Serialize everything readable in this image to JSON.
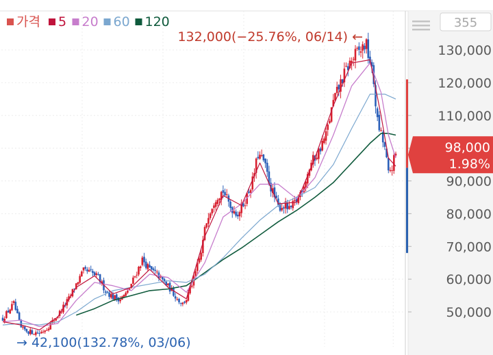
{
  "chart_data": {
    "type": "candlestick",
    "title": "",
    "xlabel": "",
    "ylabel": "",
    "ylim": [
      42000,
      137000
    ],
    "y_ticks": [
      50000,
      60000,
      70000,
      80000,
      90000,
      100000,
      110000,
      120000,
      130000
    ],
    "y_tick_labels": [
      "50,000",
      "60,000",
      "70,000",
      "80,000",
      "90,000",
      "100,000",
      "110,000",
      "120,000",
      "130,000"
    ],
    "grid": true,
    "legend_position": "top-left",
    "legend": [
      {
        "label": "가격",
        "color": "#d9534f"
      },
      {
        "label": "5",
        "color": "#c0143c"
      },
      {
        "label": "20",
        "color": "#c77dcc"
      },
      {
        "label": "60",
        "color": "#7ba7cf"
      },
      {
        "label": "120",
        "color": "#0f5a3c"
      }
    ],
    "max_annotation": {
      "text": "132,000(−25.76%, 06/14) ←",
      "value": 132000,
      "color": "#c0392b"
    },
    "min_annotation": {
      "text": "→ 42,100(132.78%, 03/06)",
      "value": 42100,
      "color": "#2a62b0"
    },
    "current_price": {
      "price": "98,000",
      "change": "1.98%",
      "value": 98000,
      "color": "#e0413f"
    },
    "top_right_box": "355",
    "side_bar": {
      "up_top": 121000,
      "split": 94000,
      "down_bottom": 68000,
      "up_color": "#e0413f",
      "down_color": "#2a62b0"
    },
    "price_path": [
      [
        0,
        48000
      ],
      [
        3,
        52500
      ],
      [
        5,
        45000
      ],
      [
        7,
        44000
      ],
      [
        10,
        43500
      ],
      [
        12,
        45000
      ],
      [
        15,
        49000
      ],
      [
        18,
        54000
      ],
      [
        20,
        58500
      ],
      [
        22,
        62500
      ],
      [
        24,
        62000
      ],
      [
        26,
        60500
      ],
      [
        28,
        56500
      ],
      [
        30,
        54500
      ],
      [
        32,
        54000
      ],
      [
        34,
        56000
      ],
      [
        36,
        61000
      ],
      [
        38,
        66000
      ],
      [
        40,
        63000
      ],
      [
        42,
        61500
      ],
      [
        44,
        59000
      ],
      [
        46,
        56500
      ],
      [
        47.5,
        54000
      ],
      [
        49,
        52500
      ],
      [
        50,
        54000
      ],
      [
        52,
        60000
      ],
      [
        54,
        68000
      ],
      [
        55,
        75000
      ],
      [
        56,
        80000
      ],
      [
        58,
        85000
      ],
      [
        60,
        87000
      ],
      [
        62,
        82000
      ],
      [
        64,
        80000
      ],
      [
        66,
        84000
      ],
      [
        68,
        90000
      ],
      [
        69.5,
        98000
      ],
      [
        71,
        96000
      ],
      [
        73,
        88000
      ],
      [
        75,
        82000
      ],
      [
        77,
        82500
      ],
      [
        78,
        81000
      ],
      [
        80,
        84000
      ],
      [
        82,
        89000
      ],
      [
        84,
        95500
      ],
      [
        86,
        99000
      ],
      [
        88,
        104000
      ],
      [
        90,
        114000
      ],
      [
        92,
        120000
      ],
      [
        94,
        125000
      ],
      [
        96,
        128500
      ],
      [
        97.5,
        130000
      ],
      [
        98.8,
        132000
      ],
      [
        100,
        126500
      ],
      [
        101,
        120000
      ],
      [
        102,
        108000
      ],
      [
        103,
        104000
      ],
      [
        104,
        100000
      ],
      [
        105,
        92000
      ],
      [
        106,
        94500
      ],
      [
        107,
        98000
      ]
    ],
    "ma5": [
      [
        0,
        47000
      ],
      [
        5,
        46000
      ],
      [
        10,
        44500
      ],
      [
        15,
        48500
      ],
      [
        20,
        57500
      ],
      [
        25,
        61000
      ],
      [
        30,
        55500
      ],
      [
        35,
        57500
      ],
      [
        40,
        63000
      ],
      [
        45,
        57500
      ],
      [
        50,
        54000
      ],
      [
        55,
        73000
      ],
      [
        60,
        85500
      ],
      [
        65,
        82500
      ],
      [
        70,
        95500
      ],
      [
        75,
        83000
      ],
      [
        80,
        83500
      ],
      [
        85,
        97000
      ],
      [
        90,
        113000
      ],
      [
        95,
        126000
      ],
      [
        100,
        127000
      ],
      [
        103,
        110000
      ],
      [
        105,
        97000
      ],
      [
        107,
        94500
      ]
    ],
    "ma20": [
      [
        0,
        47000
      ],
      [
        5,
        47500
      ],
      [
        10,
        45500
      ],
      [
        15,
        46500
      ],
      [
        20,
        53500
      ],
      [
        25,
        59000
      ],
      [
        30,
        58000
      ],
      [
        35,
        56500
      ],
      [
        40,
        61500
      ],
      [
        45,
        60500
      ],
      [
        50,
        56000
      ],
      [
        55,
        65000
      ],
      [
        60,
        79000
      ],
      [
        65,
        83000
      ],
      [
        70,
        89000
      ],
      [
        75,
        89000
      ],
      [
        80,
        84500
      ],
      [
        85,
        91000
      ],
      [
        90,
        104000
      ],
      [
        95,
        119000
      ],
      [
        100,
        126000
      ],
      [
        103,
        117000
      ],
      [
        105,
        104000
      ],
      [
        107,
        97000
      ]
    ],
    "ma60": [
      [
        0,
        46000
      ],
      [
        5,
        46500
      ],
      [
        10,
        46000
      ],
      [
        15,
        47000
      ],
      [
        20,
        50000
      ],
      [
        25,
        54000
      ],
      [
        30,
        56500
      ],
      [
        35,
        57500
      ],
      [
        40,
        58500
      ],
      [
        45,
        59500
      ],
      [
        50,
        59000
      ],
      [
        55,
        61500
      ],
      [
        60,
        66500
      ],
      [
        65,
        72500
      ],
      [
        70,
        78000
      ],
      [
        75,
        82500
      ],
      [
        80,
        85000
      ],
      [
        85,
        88000
      ],
      [
        90,
        95000
      ],
      [
        95,
        106000
      ],
      [
        100,
        116500
      ],
      [
        104,
        116500
      ],
      [
        107,
        115000
      ]
    ],
    "ma120": [
      [
        20,
        49000
      ],
      [
        25,
        51000
      ],
      [
        30,
        53500
      ],
      [
        35,
        55000
      ],
      [
        40,
        56500
      ],
      [
        45,
        57000
      ],
      [
        50,
        58000
      ],
      [
        55,
        62000
      ],
      [
        60,
        66000
      ],
      [
        65,
        69500
      ],
      [
        70,
        73500
      ],
      [
        75,
        77500
      ],
      [
        80,
        81000
      ],
      [
        85,
        85000
      ],
      [
        90,
        89500
      ],
      [
        95,
        95500
      ],
      [
        100,
        101500
      ],
      [
        103,
        104500
      ],
      [
        105,
        104500
      ],
      [
        107,
        104000
      ]
    ]
  }
}
